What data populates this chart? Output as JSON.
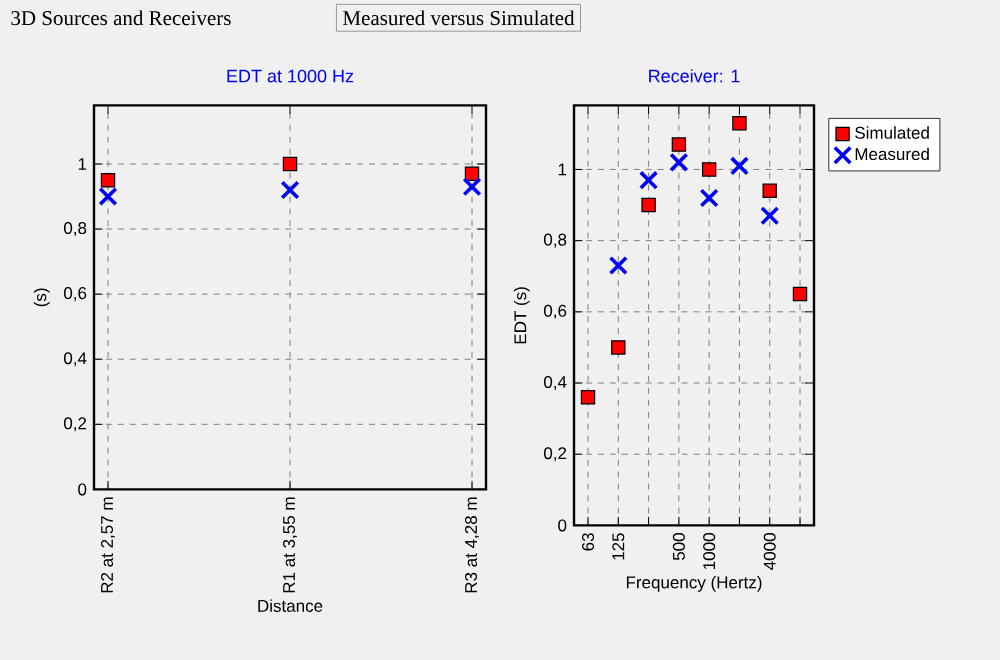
{
  "chart_data": [
    {
      "type": "scatter",
      "title": "EDT at 1000 Hz",
      "xlabel": "Distance",
      "ylabel": "(s)",
      "annotations": [
        "3D Sources and Receivers",
        "Measured versus Simulated"
      ],
      "categories": [
        "R2 at 2,57 m",
        "R1 at 3,55 m",
        "R3 at 4,28 m"
      ],
      "series": [
        {
          "color": "#ff0000",
          "marker": "square",
          "values": [
            0.95,
            1.0,
            0.97
          ]
        },
        {
          "color": "#0000ff",
          "marker": "cross",
          "values": [
            0.9,
            0.92,
            0.93
          ]
        }
      ],
      "ylim": [
        0,
        1.18
      ],
      "yticks": [
        0,
        {
          "value": 0.2,
          "label": "0,2"
        },
        {
          "value": 0.4,
          "label": "0,4"
        },
        {
          "value": 0.6,
          "label": "0,6"
        },
        {
          "value": 0.8,
          "label": "0,8"
        },
        1
      ],
      "grid": true
    },
    {
      "type": "scatter",
      "title": "Receiver: 1",
      "xlabel": "Frequency (Hertz)",
      "ylabel": "EDT (s)",
      "categories": [
        "63",
        "125",
        null,
        "500",
        "1000",
        null,
        "4000",
        null
      ],
      "series": [
        {
          "name": "Simulated",
          "color": "#ff0000",
          "marker": "square",
          "values": [
            0.36,
            0.5,
            0.9,
            1.07,
            1.0,
            1.13,
            0.94,
            0.65
          ]
        },
        {
          "name": "Measured",
          "color": "#0000ff",
          "marker": "cross",
          "values": [
            null,
            0.73,
            0.97,
            1.02,
            0.92,
            1.01,
            0.87,
            null
          ]
        }
      ],
      "ylim": [
        0,
        1.18
      ],
      "yticks": [
        0,
        {
          "value": 0.2,
          "label": "0,2"
        },
        {
          "value": 0.4,
          "label": "0,4"
        },
        {
          "value": 0.6,
          "label": "0,6"
        },
        {
          "value": 0.8,
          "label": "0,8"
        },
        1
      ],
      "grid": true,
      "legend": "right"
    }
  ]
}
